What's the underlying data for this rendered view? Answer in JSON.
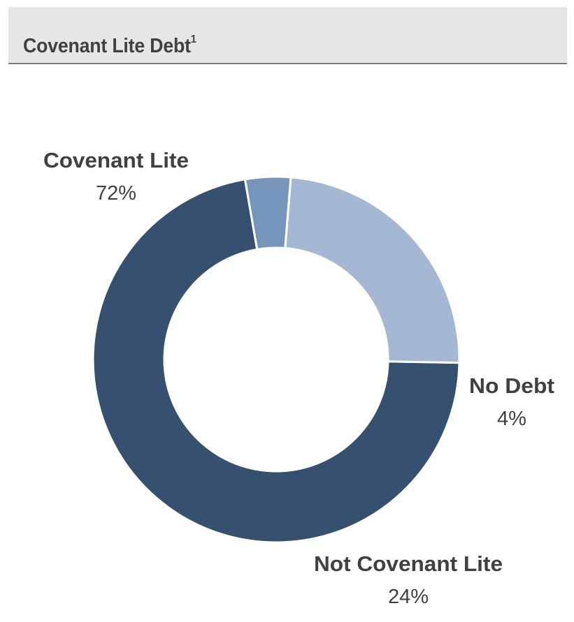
{
  "header": {
    "title": "Covenant Lite Debt",
    "footnote_mark": "1"
  },
  "chart_data": {
    "type": "pie",
    "donut": true,
    "title": "Covenant Lite Debt",
    "start_angle_deg": 91,
    "slices": [
      {
        "label": "Covenant Lite",
        "value": 72,
        "display": "72%",
        "color": "#36506f"
      },
      {
        "label": "No Debt",
        "value": 4,
        "display": "4%",
        "color": "#7695bb"
      },
      {
        "label": "Not Covenant Lite",
        "value": 24,
        "display": "24%",
        "color": "#a4b8d3"
      }
    ]
  }
}
